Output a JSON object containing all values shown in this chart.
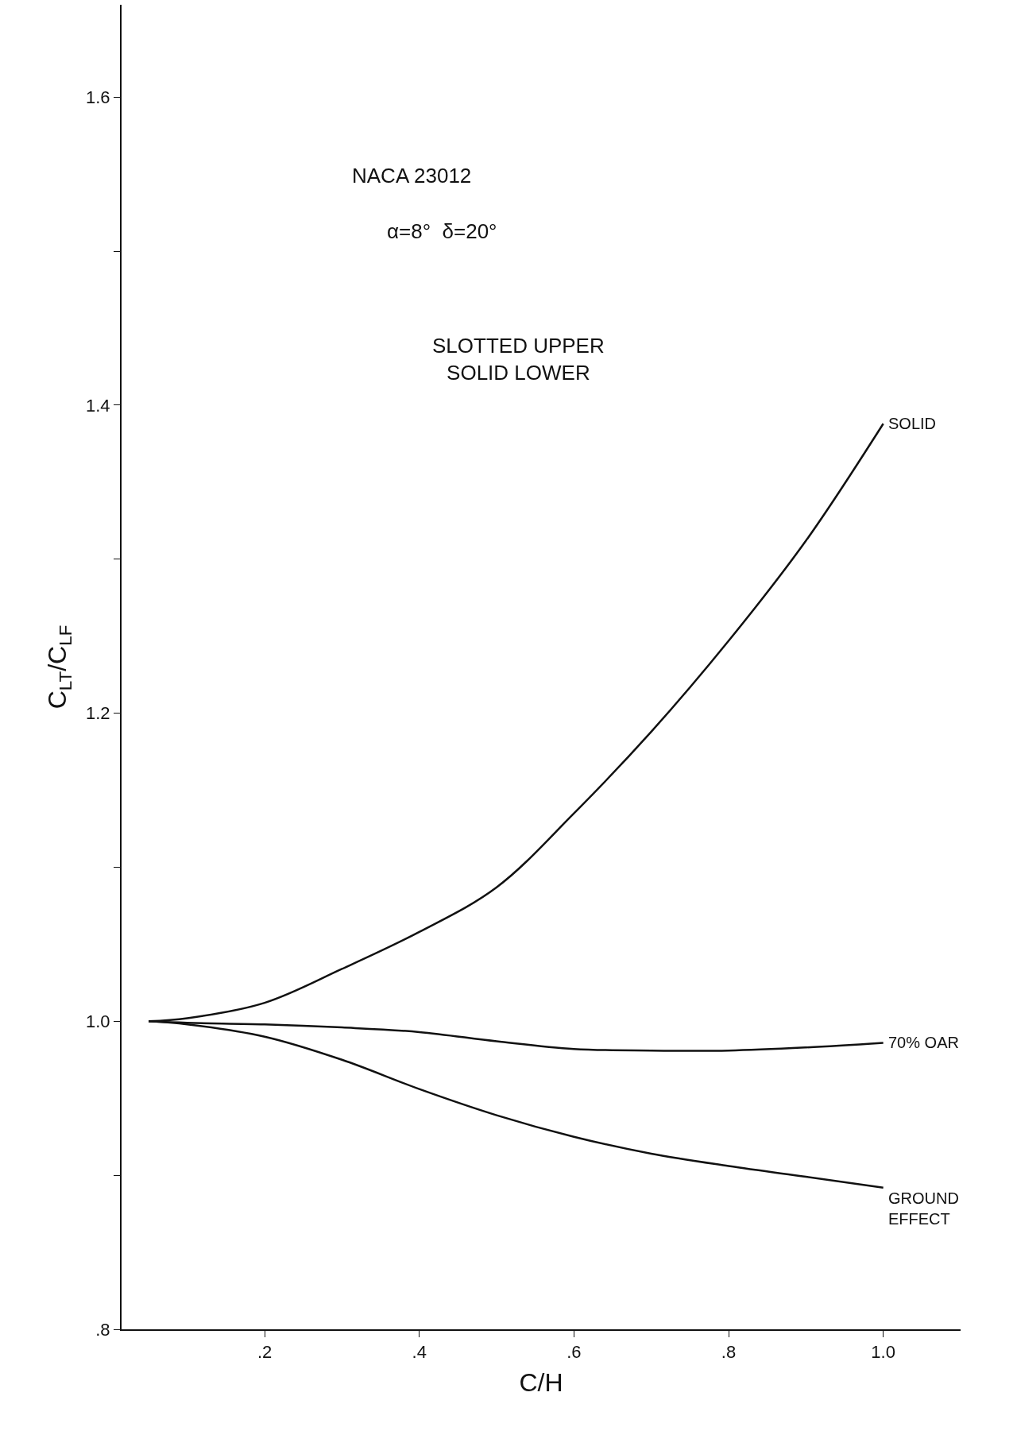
{
  "chart_data": {
    "type": "line",
    "xlabel": "C/H",
    "ylabel": "C$_{LT}$/C$_{LF}$",
    "annotations": [
      "NACA 23012",
      "α=8°  δ=20°",
      "SLOTTED UPPER\nSOLID LOWER"
    ],
    "series": [
      {
        "name": "SOLID",
        "color": "#111111",
        "x": [
          0.05,
          0.1,
          0.2,
          0.3,
          0.4,
          0.5,
          0.6,
          0.7,
          0.8,
          0.9,
          1.0
        ],
        "values": [
          1.0,
          1.002,
          1.012,
          1.034,
          1.058,
          1.087,
          1.135,
          1.188,
          1.247,
          1.312,
          1.388
        ]
      },
      {
        "name": "70% OAR",
        "color": "#111111",
        "x": [
          0.05,
          0.1,
          0.2,
          0.3,
          0.4,
          0.5,
          0.6,
          0.7,
          0.8,
          0.9,
          1.0
        ],
        "values": [
          1.0,
          0.999,
          0.998,
          0.996,
          0.993,
          0.987,
          0.982,
          0.981,
          0.981,
          0.983,
          0.986
        ]
      },
      {
        "name": "GROUND\nEFFECT",
        "color": "#111111",
        "x": [
          0.05,
          0.1,
          0.2,
          0.3,
          0.4,
          0.5,
          0.6,
          0.7,
          0.8,
          0.9,
          1.0
        ],
        "values": [
          1.0,
          0.998,
          0.99,
          0.975,
          0.956,
          0.939,
          0.925,
          0.914,
          0.906,
          0.899,
          0.892
        ]
      }
    ],
    "xlim": [
      0.015,
      1.1
    ],
    "ylim": [
      0.8,
      1.66
    ],
    "xticks": [
      {
        "value": 0.2,
        "label": ".2"
      },
      {
        "value": 0.4,
        "label": ".4"
      },
      {
        "value": 0.6,
        "label": ".6"
      },
      {
        "value": 0.8,
        "label": ".8"
      },
      {
        "value": 1.0,
        "label": "1.0"
      }
    ],
    "yticks": [
      {
        "value": 0.8,
        "label": ".8"
      },
      {
        "value": 0.9,
        "label": null
      },
      {
        "value": 1.0,
        "label": "1.0"
      },
      {
        "value": 1.1,
        "label": null
      },
      {
        "value": 1.2,
        "label": "1.2"
      },
      {
        "value": 1.3,
        "label": null
      },
      {
        "value": 1.4,
        "label": "1.4"
      },
      {
        "value": 1.5,
        "label": null
      },
      {
        "value": 1.6,
        "label": "1.6"
      }
    ],
    "legend": false,
    "marker": "none",
    "line_style": "solid"
  }
}
